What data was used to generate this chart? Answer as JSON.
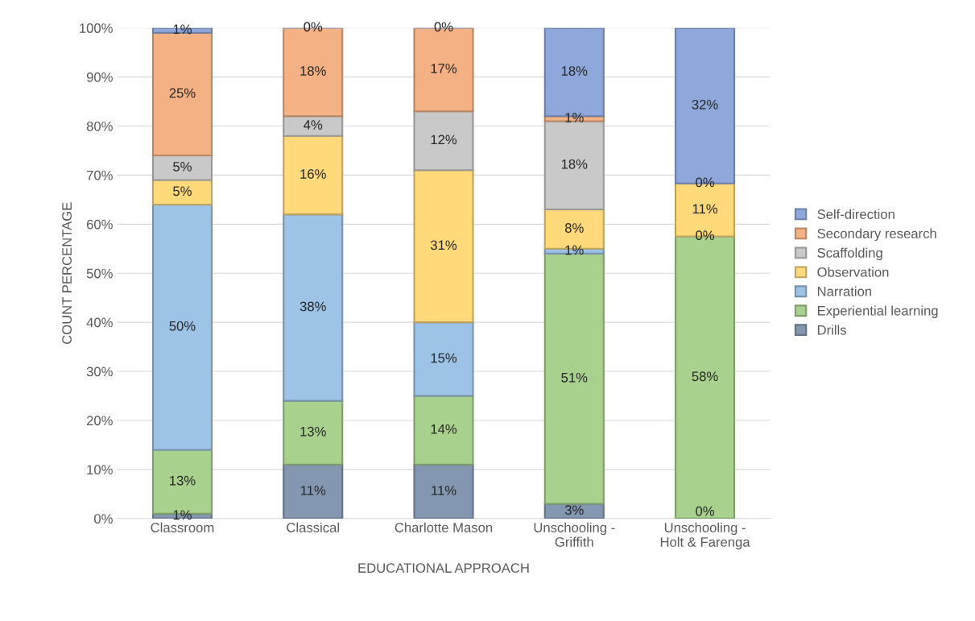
{
  "chart_data": {
    "type": "bar",
    "stacked": true,
    "xlabel": "EDUCATIONAL APPROACH",
    "ylabel": "COUNT PERCENTAGE",
    "categories": [
      "Classroom",
      "Classical",
      "Charlotte Mason",
      "Unschooling -\nGriffith",
      "Unschooling -\nHolt & Farenga"
    ],
    "series": [
      {
        "name": "Drills",
        "color": "#8497b0",
        "values": [
          1,
          11,
          11,
          3,
          0
        ],
        "value_labels": [
          "1%",
          "11%",
          "11%",
          "3%",
          "0%"
        ]
      },
      {
        "name": "Experiential learning",
        "color": "#a9d18e",
        "values": [
          13,
          13,
          14,
          51,
          57.5
        ],
        "value_labels": [
          "13%",
          "13%",
          "14%",
          "51%",
          "58%"
        ]
      },
      {
        "name": "Narration",
        "color": "#9dc3e6",
        "values": [
          50,
          38,
          15,
          1,
          0
        ],
        "value_labels": [
          "50%",
          "38%",
          "15%",
          "1%",
          "0%"
        ]
      },
      {
        "name": "Observation",
        "color": "#ffd97a",
        "values": [
          5,
          16,
          31,
          8,
          10.8
        ],
        "value_labels": [
          "5%",
          "16%",
          "31%",
          "8%",
          "11%"
        ]
      },
      {
        "name": "Scaffolding",
        "color": "#c9c9c9",
        "values": [
          5,
          4,
          12,
          18,
          0
        ],
        "value_labels": [
          "5%",
          "4%",
          "12%",
          "18%",
          "0%"
        ]
      },
      {
        "name": "Secondary research",
        "color": "#f4b183",
        "values": [
          25,
          18,
          17,
          1,
          0
        ],
        "value_labels": [
          "25%",
          "18%",
          "17%",
          "1%",
          null
        ]
      },
      {
        "name": "Self-direction",
        "color": "#8fa8dc",
        "values": [
          1,
          0,
          0,
          18,
          31.7
        ],
        "value_labels": [
          "1%",
          "0%",
          "0%",
          "18%",
          "32%"
        ]
      }
    ],
    "ylim": [
      0,
      100
    ],
    "yticks": [
      {
        "value": 0,
        "label": "0%"
      },
      {
        "value": 10,
        "label": "10%"
      },
      {
        "value": 20,
        "label": "20%"
      },
      {
        "value": 30,
        "label": "30%"
      },
      {
        "value": 40,
        "label": "40%"
      },
      {
        "value": 50,
        "label": "50%"
      },
      {
        "value": 60,
        "label": "60%"
      },
      {
        "value": 70,
        "label": "70%"
      },
      {
        "value": 80,
        "label": "80%"
      },
      {
        "value": 90,
        "label": "90%"
      },
      {
        "value": 100,
        "label": "100%"
      }
    ],
    "grid": "y",
    "legend": "right"
  }
}
